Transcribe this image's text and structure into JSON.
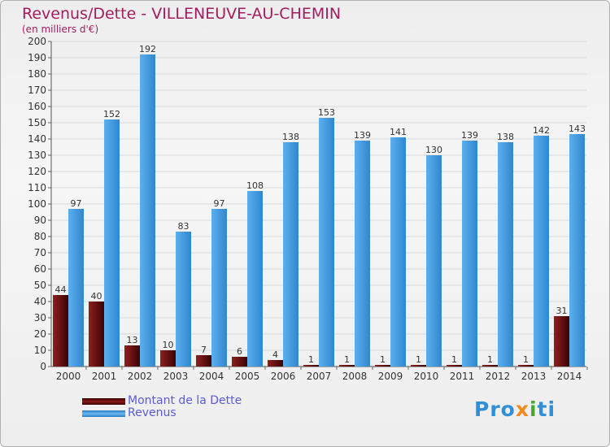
{
  "chart_data": {
    "type": "bar",
    "title": "Revenus/Dette - VILLENEUVE-AU-CHEMIN",
    "subtitle": "(en milliers d'€)",
    "categories": [
      "2000",
      "2001",
      "2002",
      "2003",
      "2004",
      "2005",
      "2006",
      "2007",
      "2008",
      "2009",
      "2010",
      "2011",
      "2012",
      "2013",
      "2014"
    ],
    "series": [
      {
        "name": "Montant de la Dette",
        "color": "#8b1a1a",
        "values": [
          44,
          40,
          13,
          10,
          7,
          6,
          4,
          1,
          1,
          1,
          1,
          1,
          1,
          1,
          31
        ]
      },
      {
        "name": "Revenus",
        "color": "#4da3e6",
        "values": [
          97,
          152,
          192,
          83,
          97,
          108,
          138,
          153,
          139,
          141,
          130,
          139,
          138,
          142,
          143
        ]
      }
    ],
    "ylim": [
      0,
      200
    ],
    "yticks": [
      0,
      10,
      20,
      30,
      40,
      50,
      60,
      70,
      80,
      90,
      100,
      110,
      120,
      130,
      140,
      150,
      160,
      170,
      180,
      190,
      200
    ],
    "grid": true,
    "legend_position": "bottom-left"
  },
  "logo": {
    "p1": "Pro",
    "p2": "x",
    "p3": "i",
    "p4": "ti"
  }
}
